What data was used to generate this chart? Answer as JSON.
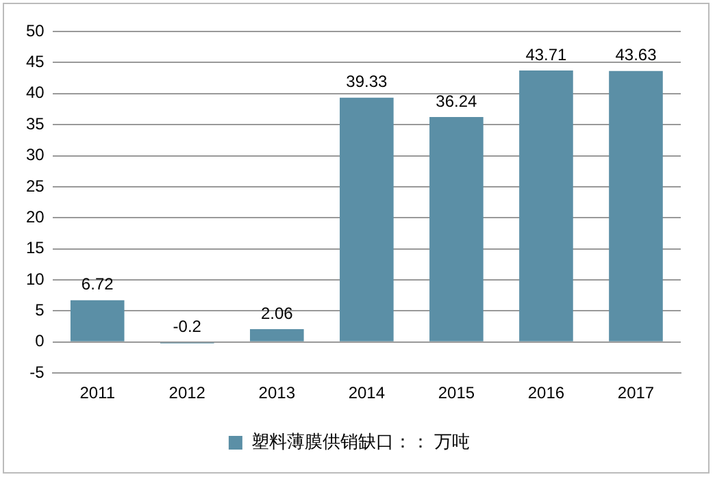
{
  "chart_data": {
    "type": "bar",
    "categories": [
      "2011",
      "2012",
      "2013",
      "2014",
      "2015",
      "2016",
      "2017"
    ],
    "series": [
      {
        "name": "塑料薄膜供销缺口：： 万吨",
        "color": "#5b8fa6",
        "values": [
          6.72,
          -0.2,
          2.06,
          39.33,
          36.24,
          43.71,
          43.63
        ]
      }
    ],
    "ylim": [
      -5,
      50
    ],
    "yticks": [
      -5,
      0,
      5,
      10,
      15,
      20,
      25,
      30,
      35,
      40,
      45,
      50
    ],
    "grid": "y",
    "legend": "bottom",
    "data_labels": true
  }
}
